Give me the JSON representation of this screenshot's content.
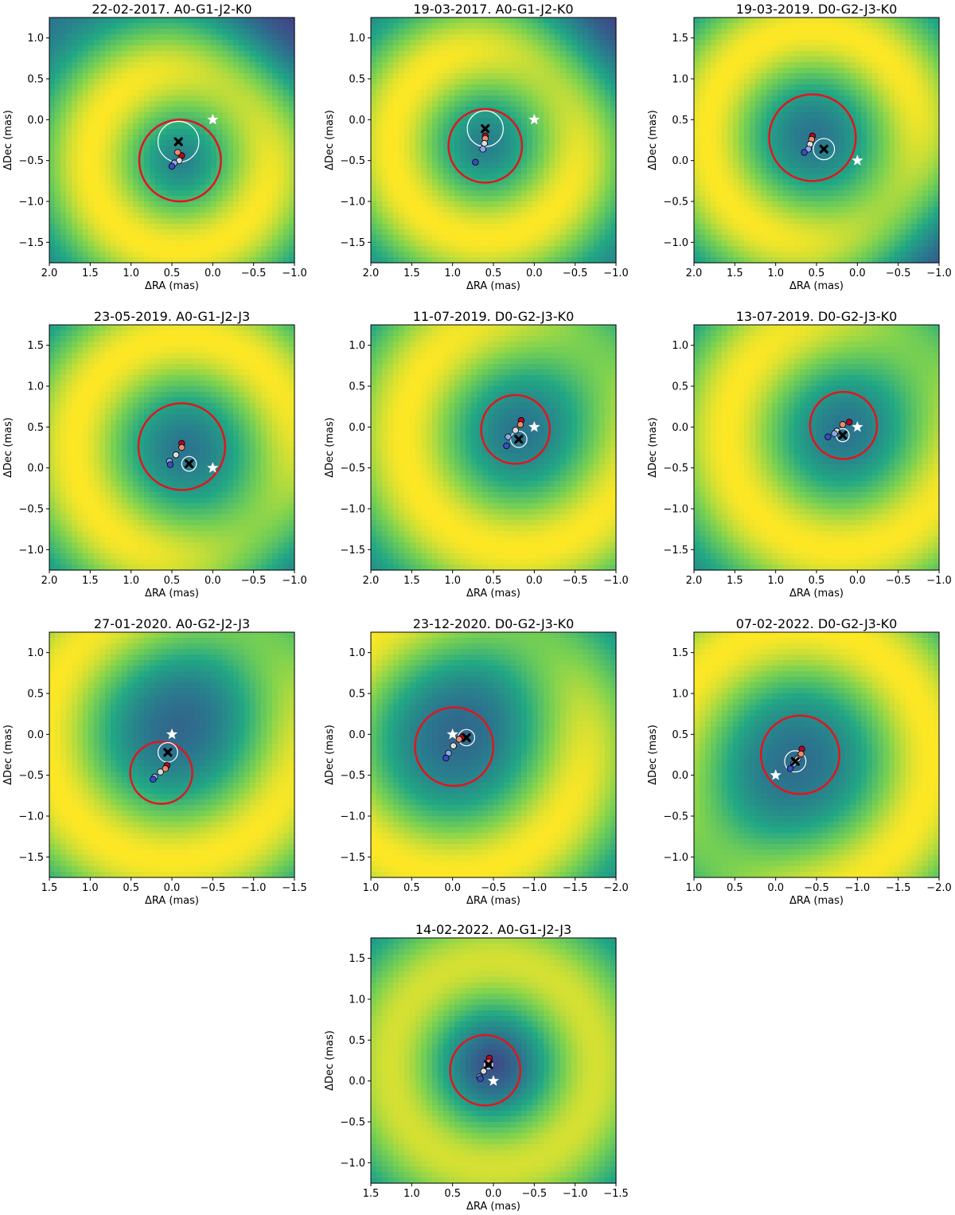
{
  "figure": {
    "colormap": [
      "#440154",
      "#414487",
      "#2a788e",
      "#22a884",
      "#7ad151",
      "#fde725"
    ],
    "marker_colors": {
      "circle_1": "#b40426",
      "circle_2": "#f08a6c",
      "circle_3": "#dddcdc",
      "circle_4": "#8ba7ec",
      "circle_5": "#3b4cc0",
      "big_circle": "#e0161c",
      "small_circle": "#ffffff",
      "star": "#ffffff",
      "cross": "#000000"
    }
  },
  "chart_data": [
    {
      "type": "heatmap",
      "title": "22-02-2017. A0-G1-J2-K0",
      "xlabel": "ΔRA (mas)",
      "ylabel": "ΔDec (mas)",
      "xlim": [
        2.0,
        -1.0
      ],
      "ylim": [
        -1.75,
        1.25
      ],
      "xticks": [
        2.0,
        1.5,
        1.0,
        0.5,
        0.0,
        -0.5,
        -1.0
      ],
      "yticks": [
        -1.5,
        -1.0,
        -0.5,
        0.0,
        0.5,
        1.0
      ],
      "background": {
        "ring_center": [
          0.4,
          -0.5
        ],
        "ring_radius": 1.1,
        "ring_width": 0.75,
        "low_center": [
          -0.9,
          1.1
        ]
      },
      "star": [
        0.0,
        0.0
      ],
      "best_fit": [
        0.42,
        -0.27
      ],
      "white_circle": {
        "center": [
          0.42,
          -0.27
        ],
        "radius": 0.25
      },
      "red_circle": {
        "center": [
          0.4,
          -0.5
        ],
        "radius": 0.5
      },
      "points": [
        {
          "x": 0.38,
          "y": -0.44
        },
        {
          "x": 0.43,
          "y": -0.4
        },
        {
          "x": 0.41,
          "y": -0.5
        },
        {
          "x": 0.47,
          "y": -0.53
        },
        {
          "x": 0.5,
          "y": -0.57
        }
      ]
    },
    {
      "type": "heatmap",
      "title": "19-03-2017. A0-G1-J2-K0",
      "xlabel": "ΔRA (mas)",
      "ylabel": "ΔDec (mas)",
      "xlim": [
        2.0,
        -1.0
      ],
      "ylim": [
        -1.75,
        1.25
      ],
      "xticks": [
        2.0,
        1.5,
        1.0,
        0.5,
        0.0,
        -0.5,
        -1.0
      ],
      "yticks": [
        -1.5,
        -1.0,
        -0.5,
        0.0,
        0.5,
        1.0
      ],
      "background": {
        "ring_center": [
          0.6,
          -0.3
        ],
        "ring_radius": 1.15,
        "ring_width": 0.75,
        "low_center": [
          -0.9,
          1.1
        ]
      },
      "star": [
        0.0,
        0.0
      ],
      "best_fit": [
        0.6,
        -0.11
      ],
      "white_circle": {
        "center": [
          0.6,
          -0.11
        ],
        "radius": 0.22
      },
      "red_circle": {
        "center": [
          0.6,
          -0.32
        ],
        "radius": 0.45
      },
      "points": [
        {
          "x": 0.6,
          "y": -0.2
        },
        {
          "x": 0.6,
          "y": -0.23
        },
        {
          "x": 0.61,
          "y": -0.29
        },
        {
          "x": 0.63,
          "y": -0.36
        },
        {
          "x": 0.72,
          "y": -0.52
        }
      ]
    },
    {
      "type": "heatmap",
      "title": "19-03-2019. D0-G2-J3-K0",
      "xlabel": "ΔRA (mas)",
      "ylabel": "ΔDec (mas)",
      "xlim": [
        2.0,
        -1.0
      ],
      "ylim": [
        -1.25,
        1.75
      ],
      "xticks": [
        2.0,
        1.5,
        1.0,
        0.5,
        0.0,
        -0.5,
        -1.0
      ],
      "yticks": [
        -1.0,
        -0.5,
        0.0,
        0.5,
        1.0,
        1.5
      ],
      "background": {
        "ring_center": [
          0.55,
          0.3
        ],
        "ring_radius": 1.3,
        "ring_width": 0.75,
        "low_center": [
          -0.9,
          -1.1
        ]
      },
      "star": [
        0.0,
        0.0
      ],
      "best_fit": [
        0.41,
        0.14
      ],
      "white_circle": {
        "center": [
          0.41,
          0.14
        ],
        "radius": 0.13
      },
      "red_circle": {
        "center": [
          0.55,
          0.28
        ],
        "radius": 0.53
      },
      "points": [
        {
          "x": 0.55,
          "y": 0.3
        },
        {
          "x": 0.56,
          "y": 0.26
        },
        {
          "x": 0.58,
          "y": 0.2
        },
        {
          "x": 0.6,
          "y": 0.14
        },
        {
          "x": 0.65,
          "y": 0.1
        }
      ]
    },
    {
      "type": "heatmap",
      "title": "23-05-2019. A0-G1-J2-J3",
      "xlabel": "ΔRA (mas)",
      "ylabel": "ΔDec (mas)",
      "xlim": [
        2.0,
        -1.0
      ],
      "ylim": [
        -1.25,
        1.75
      ],
      "xticks": [
        2.0,
        1.5,
        1.0,
        0.5,
        0.0,
        -0.5,
        -1.0
      ],
      "yticks": [
        -1.0,
        -0.5,
        0.0,
        0.5,
        1.0,
        1.5
      ],
      "background": {
        "ring_center": [
          0.35,
          0.25
        ],
        "ring_radius": 1.35,
        "ring_width": 0.8,
        "low_center": [
          -0.9,
          -1.1
        ]
      },
      "star": [
        0.0,
        0.0
      ],
      "best_fit": [
        0.29,
        0.05
      ],
      "white_circle": {
        "center": [
          0.29,
          0.05
        ],
        "radius": 0.09
      },
      "red_circle": {
        "center": [
          0.38,
          0.26
        ],
        "radius": 0.53
      },
      "points": [
        {
          "x": 0.38,
          "y": 0.3
        },
        {
          "x": 0.38,
          "y": 0.25
        },
        {
          "x": 0.45,
          "y": 0.16
        },
        {
          "x": 0.53,
          "y": 0.08
        },
        {
          "x": 0.52,
          "y": 0.04
        }
      ]
    },
    {
      "type": "heatmap",
      "title": "11-07-2019. D0-G2-J3-K0",
      "xlabel": "ΔRA (mas)",
      "ylabel": "ΔDec (mas)",
      "xlim": [
        2.0,
        -1.0
      ],
      "ylim": [
        -1.75,
        1.25
      ],
      "xticks": [
        2.0,
        1.5,
        1.0,
        0.5,
        0.0,
        -0.5,
        -1.0
      ],
      "yticks": [
        -1.5,
        -1.0,
        -0.5,
        0.0,
        0.5,
        1.0
      ],
      "background": {
        "ring_center": [
          0.2,
          -0.1
        ],
        "ring_radius": 1.4,
        "ring_width": 0.85,
        "low_center": [
          -0.9,
          1.1
        ]
      },
      "star": [
        0.0,
        0.0
      ],
      "best_fit": [
        0.19,
        -0.15
      ],
      "white_circle": {
        "center": [
          0.19,
          -0.15
        ],
        "radius": 0.1
      },
      "red_circle": {
        "center": [
          0.23,
          -0.03
        ],
        "radius": 0.42
      },
      "points": [
        {
          "x": 0.16,
          "y": 0.08
        },
        {
          "x": 0.17,
          "y": 0.03
        },
        {
          "x": 0.23,
          "y": -0.04
        },
        {
          "x": 0.32,
          "y": -0.12
        },
        {
          "x": 0.34,
          "y": -0.23
        }
      ]
    },
    {
      "type": "heatmap",
      "title": "13-07-2019. D0-G2-J3-K0",
      "xlabel": "ΔRA (mas)",
      "ylabel": "ΔDec (mas)",
      "xlim": [
        2.0,
        -1.0
      ],
      "ylim": [
        -1.75,
        1.25
      ],
      "xticks": [
        2.0,
        1.5,
        1.0,
        0.5,
        0.0,
        -0.5,
        -1.0
      ],
      "yticks": [
        -1.5,
        -1.0,
        -0.5,
        0.0,
        0.5,
        1.0
      ],
      "background": {
        "ring_center": [
          0.2,
          -0.1
        ],
        "ring_radius": 1.4,
        "ring_width": 0.85,
        "low_center": [
          -0.9,
          1.1
        ]
      },
      "star": [
        0.0,
        0.0
      ],
      "best_fit": [
        0.18,
        -0.1
      ],
      "white_circle": {
        "center": [
          0.18,
          -0.1
        ],
        "radius": 0.08
      },
      "red_circle": {
        "center": [
          0.17,
          0.02
        ],
        "radius": 0.41
      },
      "points": [
        {
          "x": 0.1,
          "y": 0.06
        },
        {
          "x": 0.18,
          "y": 0.03
        },
        {
          "x": 0.25,
          "y": -0.05
        },
        {
          "x": 0.28,
          "y": -0.08
        },
        {
          "x": 0.36,
          "y": -0.12
        }
      ]
    },
    {
      "type": "heatmap",
      "title": "27-01-2020. A0-G2-J2-J3",
      "xlabel": "ΔRA (mas)",
      "ylabel": "ΔDec (mas)",
      "xlim": [
        1.5,
        -1.5
      ],
      "ylim": [
        -1.75,
        1.25
      ],
      "xticks": [
        1.5,
        1.0,
        0.5,
        0.0,
        -0.5,
        -1.0,
        -1.5
      ],
      "yticks": [
        -1.5,
        -1.0,
        -0.5,
        0.0,
        0.5,
        1.0
      ],
      "background": {
        "ring_center": [
          0.0,
          0.0
        ],
        "ring_radius": 1.55,
        "ring_width": 0.85,
        "low_center": [
          -0.9,
          1.1
        ]
      },
      "star": [
        0.0,
        0.0
      ],
      "best_fit": [
        0.05,
        -0.22
      ],
      "white_circle": {
        "center": [
          0.05,
          -0.22
        ],
        "radius": 0.12
      },
      "red_circle": {
        "center": [
          0.13,
          -0.47
        ],
        "radius": 0.38
      },
      "points": [
        {
          "x": 0.06,
          "y": -0.38
        },
        {
          "x": 0.08,
          "y": -0.42
        },
        {
          "x": 0.14,
          "y": -0.46
        },
        {
          "x": 0.21,
          "y": -0.52
        },
        {
          "x": 0.23,
          "y": -0.55
        }
      ]
    },
    {
      "type": "heatmap",
      "title": "23-12-2020. D0-G2-J3-K0",
      "xlabel": "ΔRA (mas)",
      "ylabel": "ΔDec (mas)",
      "xlim": [
        1.0,
        -2.0
      ],
      "ylim": [
        -1.75,
        1.25
      ],
      "xticks": [
        1.0,
        0.5,
        0.0,
        -0.5,
        -1.0,
        -1.5,
        -2.0
      ],
      "yticks": [
        -1.5,
        -1.0,
        -0.5,
        0.0,
        0.5,
        1.0
      ],
      "background": {
        "ring_center": [
          0.0,
          -0.1
        ],
        "ring_radius": 1.6,
        "ring_width": 0.85,
        "low_center": [
          -0.9,
          1.1
        ]
      },
      "star": [
        0.0,
        0.0
      ],
      "best_fit": [
        -0.17,
        -0.04
      ],
      "white_circle": {
        "center": [
          -0.17,
          -0.04
        ],
        "radius": 0.1
      },
      "red_circle": {
        "center": [
          -0.02,
          -0.15
        ],
        "radius": 0.48
      },
      "points": [
        {
          "x": -0.12,
          "y": -0.03
        },
        {
          "x": -0.08,
          "y": -0.06
        },
        {
          "x": -0.01,
          "y": -0.14
        },
        {
          "x": 0.05,
          "y": -0.23
        },
        {
          "x": 0.08,
          "y": -0.29
        }
      ]
    },
    {
      "type": "heatmap",
      "title": "07-02-2022. D0-G2-J3-K0",
      "xlabel": "ΔRA (mas)",
      "ylabel": "ΔDec (mas)",
      "xlim": [
        1.0,
        -2.0
      ],
      "ylim": [
        -1.25,
        1.75
      ],
      "xticks": [
        1.0,
        0.5,
        0.0,
        -0.5,
        -1.0,
        -1.5,
        -2.0
      ],
      "yticks": [
        -1.0,
        -0.5,
        0.0,
        0.5,
        1.0,
        1.5
      ],
      "background": {
        "ring_center": [
          -0.3,
          0.2
        ],
        "ring_radius": 1.6,
        "ring_width": 0.85,
        "low_center": [
          0.9,
          -1.1
        ]
      },
      "star": [
        0.0,
        0.0
      ],
      "best_fit": [
        -0.24,
        0.17
      ],
      "white_circle": {
        "center": [
          -0.24,
          0.17
        ],
        "radius": 0.13
      },
      "red_circle": {
        "center": [
          -0.3,
          0.25
        ],
        "radius": 0.48
      },
      "points": [
        {
          "x": -0.32,
          "y": 0.32
        },
        {
          "x": -0.31,
          "y": 0.26
        },
        {
          "x": -0.27,
          "y": 0.2
        },
        {
          "x": -0.22,
          "y": 0.14
        },
        {
          "x": -0.18,
          "y": 0.08
        }
      ]
    },
    {
      "type": "heatmap",
      "title": "14-02-2022. A0-G1-J2-J3",
      "xlabel": "ΔRA (mas)",
      "ylabel": "ΔDec (mas)",
      "xlim": [
        1.5,
        -1.5
      ],
      "ylim": [
        -1.25,
        1.75
      ],
      "xticks": [
        1.5,
        1.0,
        0.5,
        0.0,
        -0.5,
        -1.0,
        -1.5
      ],
      "yticks": [
        -1.0,
        -0.5,
        0.0,
        0.5,
        1.0,
        1.5
      ],
      "background": {
        "ring_center": [
          0.0,
          0.2
        ],
        "ring_radius": 1.2,
        "ring_width": 0.85,
        "low_center": [
          0.0,
          0.2
        ]
      },
      "star": [
        0.0,
        0.0
      ],
      "best_fit": [
        0.06,
        0.2
      ],
      "white_circle": {
        "center": [
          0.06,
          0.2
        ],
        "radius": 0.05
      },
      "red_circle": {
        "center": [
          0.1,
          0.13
        ],
        "radius": 0.43
      },
      "points": [
        {
          "x": 0.05,
          "y": 0.28
        },
        {
          "x": 0.06,
          "y": 0.23
        },
        {
          "x": 0.12,
          "y": 0.12
        },
        {
          "x": 0.17,
          "y": 0.05
        },
        {
          "x": 0.16,
          "y": 0.03
        }
      ]
    }
  ]
}
